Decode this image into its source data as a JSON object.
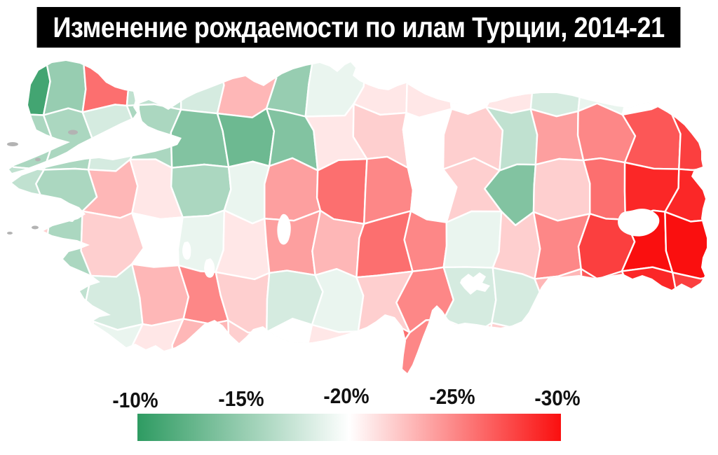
{
  "title": "Изменение рождаемости по илам Турции, 2014-21",
  "legend": {
    "ticks": [
      "-10%",
      "-15%",
      "-20%",
      "-25%",
      "-30%"
    ]
  },
  "colors": {
    "background": "#ffffff",
    "title_bg": "#000000",
    "title_fg": "#ffffff",
    "green_end": "#2e9b62",
    "midpoint": "#ffffff",
    "red_end": "#fa0f0f",
    "cell_border": "#ffffff",
    "water_white": "#ffffff",
    "island_gray": "#b3b3b3",
    "label_color": "#111111"
  },
  "chart_data": {
    "type": "choropleth",
    "title": "Изменение рождаемости по илам Турции, 2014-21",
    "region": "Turkey, provinces (iller)",
    "metric": "Change in birth rate 2014-21, %",
    "colorscale": {
      "domain": [
        -10,
        -20,
        -30
      ],
      "colors": [
        "#2e9b62",
        "#ffffff",
        "#fa0f0f"
      ],
      "legend_ticks": [
        -10,
        -15,
        -20,
        -25,
        -30
      ],
      "legend_position": "bottom"
    },
    "note": "values approximated from map colors on a 16x6 grid, west-to-east / north-to-south",
    "grid": {
      "cols": 16,
      "rows": 6,
      "values": [
        [
          -11,
          -15,
          -26,
          -17,
          -18,
          -23,
          -15,
          -19,
          -21,
          -21,
          -20,
          -21,
          -18,
          -19,
          -20,
          -22
        ],
        [
          -16,
          -16,
          -18,
          -16,
          -14,
          -13,
          -14,
          -21,
          -22,
          -20,
          -22,
          -17,
          -24,
          -25,
          -27,
          -28
        ],
        [
          -17,
          -16,
          -23,
          -21,
          -16,
          -19,
          -24,
          -26,
          -25,
          -20,
          -22,
          -14,
          -22,
          -26,
          -29,
          -29
        ],
        [
          -22,
          -16,
          -22,
          -20,
          -19,
          -21,
          -24,
          -23,
          -26,
          -25,
          -19,
          -22,
          -25,
          -28,
          -30,
          -30
        ],
        [
          -15,
          -17,
          -18,
          -23,
          -25,
          -22,
          -18,
          -19,
          -22,
          -25,
          -18,
          -18,
          -23,
          -27,
          -29,
          -28
        ],
        [
          -18,
          -18,
          -19,
          -21,
          -23,
          -22,
          -20,
          -21,
          -26,
          -25,
          -22,
          -22,
          -23,
          -26,
          -28,
          -28
        ]
      ]
    }
  }
}
